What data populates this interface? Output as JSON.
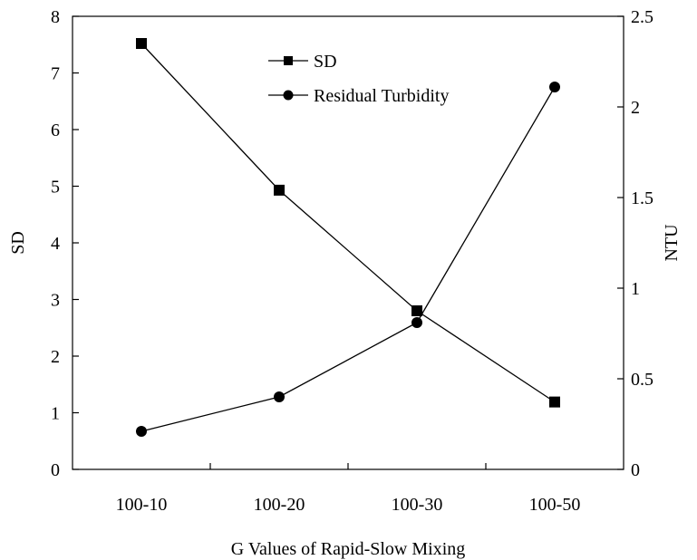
{
  "chart_data": {
    "type": "line",
    "categories": [
      "100-10",
      "100-20",
      "100-30",
      "100-50"
    ],
    "xlabel": "G Values of Rapid-Slow Mixing",
    "y_left": {
      "label": "SD",
      "range": [
        0,
        8
      ],
      "ticks": [
        0,
        1,
        2,
        3,
        4,
        5,
        6,
        7,
        8
      ]
    },
    "y_right": {
      "label": "NTU",
      "range": [
        0,
        2.5
      ],
      "ticks": [
        0,
        0.5,
        1,
        1.5,
        2,
        2.5
      ],
      "tick_labels": [
        "0",
        "0.5",
        "1",
        "1.5",
        "2",
        "2.5"
      ]
    },
    "series": [
      {
        "name": "SD",
        "axis": "left",
        "marker": "square",
        "values": [
          7.52,
          4.93,
          2.8,
          1.19
        ]
      },
      {
        "name": "Residual Turbidity",
        "axis": "right",
        "marker": "circle",
        "values": [
          0.21,
          0.4,
          0.81,
          2.11
        ]
      }
    ],
    "grid": false,
    "legend_position": "top-center",
    "line_color": "#000000"
  }
}
